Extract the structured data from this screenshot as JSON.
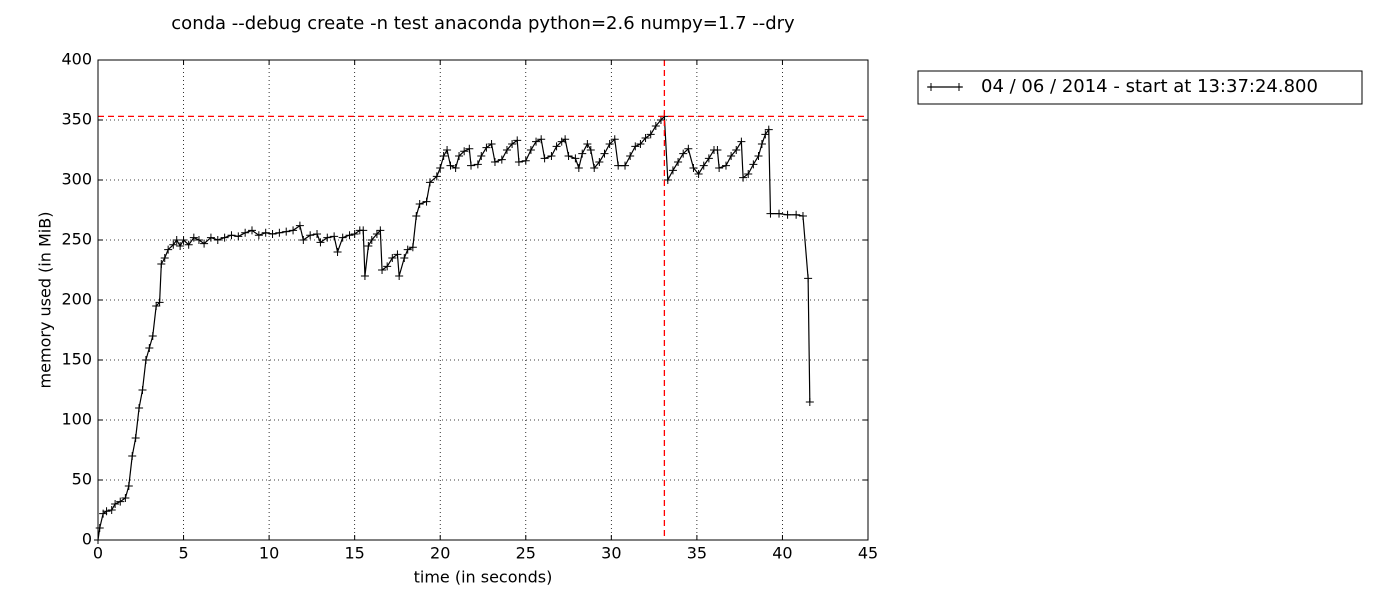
{
  "chart_data": {
    "type": "line",
    "title": "conda --debug create -n test anaconda python=2.6 numpy=1.7 --dry",
    "x_label": "time (in seconds)",
    "y_label": "memory used (in MiB)",
    "xlim": [
      0,
      45
    ],
    "ylim": [
      0,
      400
    ],
    "xticks": [
      0,
      5,
      10,
      15,
      20,
      25,
      30,
      35,
      40,
      45
    ],
    "yticks": [
      0,
      50,
      100,
      150,
      200,
      250,
      300,
      350,
      400
    ],
    "grid": true,
    "legend": "outside upper right",
    "marker": "+",
    "x": [
      0,
      0.1,
      0.3,
      0.5,
      0.8,
      1.0,
      1.3,
      1.6,
      1.8,
      2.0,
      2.2,
      2.4,
      2.6,
      2.8,
      3.0,
      3.2,
      3.4,
      3.6,
      3.7,
      3.9,
      4.1,
      4.4,
      4.6,
      4.8,
      5.0,
      5.3,
      5.6,
      5.9,
      6.2,
      6.6,
      7.0,
      7.4,
      7.8,
      8.2,
      8.6,
      9.0,
      9.4,
      9.8,
      10.2,
      10.6,
      11.0,
      11.4,
      11.8,
      12.0,
      12.4,
      12.8,
      13.0,
      13.4,
      13.8,
      14.0,
      14.3,
      14.7,
      15.0,
      15.3,
      15.5,
      15.6,
      15.8,
      16.0,
      16.3,
      16.5,
      16.6,
      16.9,
      17.2,
      17.5,
      17.6,
      17.9,
      18.1,
      18.4,
      18.6,
      18.8,
      19.2,
      19.4,
      19.8,
      20.0,
      20.2,
      20.4,
      20.6,
      20.9,
      21.1,
      21.4,
      21.7,
      21.8,
      22.2,
      22.4,
      22.7,
      23.0,
      23.2,
      23.6,
      23.9,
      24.2,
      24.5,
      24.6,
      25.0,
      25.3,
      25.6,
      25.9,
      26.1,
      26.5,
      26.8,
      27.1,
      27.3,
      27.5,
      27.9,
      28.1,
      28.3,
      28.6,
      28.8,
      29.0,
      29.3,
      29.6,
      29.9,
      30.2,
      30.4,
      30.8,
      31.1,
      31.4,
      31.7,
      32.0,
      32.3,
      32.6,
      32.9,
      33.1,
      33.3,
      33.6,
      33.9,
      34.2,
      34.5,
      34.8,
      35.1,
      35.4,
      35.7,
      36.0,
      36.2,
      36.3,
      36.7,
      37.0,
      37.3,
      37.6,
      37.7,
      38.0,
      38.3,
      38.6,
      38.8,
      39.0,
      39.2,
      39.3,
      39.8,
      40.3,
      40.8,
      41.2,
      41.5,
      41.6
    ],
    "series": [
      {
        "name": "04 / 06 / 2014 - start at 13:37:24.800",
        "color": "#000000",
        "values": [
          0,
          10,
          22,
          24,
          25,
          30,
          32,
          35,
          45,
          70,
          85,
          110,
          125,
          150,
          160,
          170,
          195,
          198,
          230,
          235,
          242,
          246,
          250,
          245,
          250,
          246,
          252,
          250,
          247,
          252,
          250,
          252,
          254,
          253,
          256,
          258,
          254,
          256,
          255,
          256,
          257,
          258,
          262,
          250,
          254,
          255,
          248,
          252,
          253,
          240,
          252,
          254,
          255,
          258,
          258,
          220,
          245,
          250,
          255,
          258,
          225,
          228,
          235,
          238,
          220,
          235,
          242,
          244,
          270,
          280,
          282,
          298,
          303,
          310,
          320,
          325,
          312,
          310,
          320,
          324,
          326,
          312,
          313,
          320,
          327,
          330,
          315,
          317,
          325,
          330,
          333,
          315,
          316,
          325,
          332,
          334,
          318,
          320,
          328,
          332,
          334,
          320,
          318,
          310,
          322,
          330,
          325,
          310,
          315,
          322,
          330,
          334,
          312,
          312,
          320,
          328,
          330,
          335,
          338,
          345,
          350,
          353,
          300,
          308,
          315,
          322,
          326,
          310,
          305,
          312,
          318,
          325,
          325,
          310,
          312,
          320,
          325,
          332,
          302,
          305,
          313,
          320,
          330,
          338,
          342,
          272,
          272,
          271,
          271,
          270,
          218,
          115
        ]
      }
    ],
    "reference_lines": [
      {
        "axis": "x",
        "value": 33.1,
        "color": "#ff0000"
      },
      {
        "axis": "y",
        "value": 353,
        "color": "#ff0000"
      }
    ]
  }
}
